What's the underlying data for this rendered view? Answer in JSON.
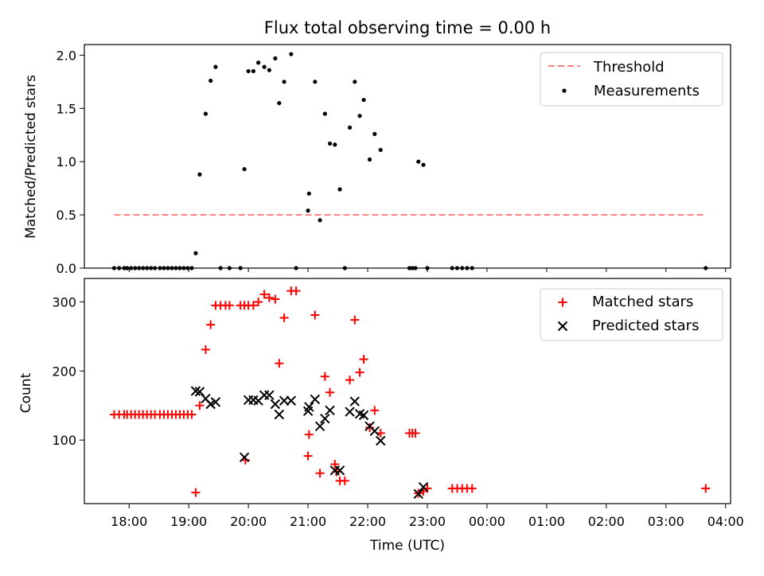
{
  "chart_data": [
    {
      "type": "scatter",
      "title": "Flux total observing time = 0.00 h",
      "ylabel": "Matched/Predicted stars",
      "ylim": [
        0,
        2.1
      ],
      "yticks": [
        0.0,
        0.5,
        1.0,
        1.5,
        2.0
      ],
      "ytick_labels": [
        "0.0",
        "0.5",
        "1.0",
        "1.5",
        "2.0"
      ],
      "xlim": [
        "17:15",
        "04:05"
      ],
      "legend_position": "top-right",
      "threshold": {
        "name": "Threshold",
        "value": 0.5,
        "x_range": [
          "17:45",
          "03:40"
        ],
        "color": "#ff8080"
      },
      "measurements": {
        "name": "Measurements",
        "color": "#000000",
        "points": [
          [
            "17:45",
            0.0
          ],
          [
            "17:50",
            0.0
          ],
          [
            "17:55",
            0.0
          ],
          [
            "17:58",
            0.0
          ],
          [
            "18:02",
            0.0
          ],
          [
            "18:06",
            0.0
          ],
          [
            "18:10",
            0.0
          ],
          [
            "18:14",
            0.0
          ],
          [
            "18:18",
            0.0
          ],
          [
            "18:22",
            0.0
          ],
          [
            "18:26",
            0.0
          ],
          [
            "18:31",
            0.0
          ],
          [
            "18:35",
            0.0
          ],
          [
            "18:39",
            0.0
          ],
          [
            "18:43",
            0.0
          ],
          [
            "18:47",
            0.0
          ],
          [
            "18:51",
            0.0
          ],
          [
            "18:55",
            0.0
          ],
          [
            "18:59",
            0.0
          ],
          [
            "19:03",
            0.0
          ],
          [
            "19:07",
            0.14
          ],
          [
            "19:11",
            0.88
          ],
          [
            "19:17",
            1.45
          ],
          [
            "19:22",
            1.76
          ],
          [
            "19:27",
            1.89
          ],
          [
            "19:32",
            0.0
          ],
          [
            "19:41",
            0.0
          ],
          [
            "19:52",
            0.0
          ],
          [
            "19:56",
            0.93
          ],
          [
            "20:00",
            1.85
          ],
          [
            "20:05",
            1.85
          ],
          [
            "20:10",
            1.93
          ],
          [
            "20:16",
            1.89
          ],
          [
            "20:21",
            1.86
          ],
          [
            "20:27",
            1.97
          ],
          [
            "20:31",
            1.55
          ],
          [
            "20:36",
            1.75
          ],
          [
            "20:43",
            2.01
          ],
          [
            "20:48",
            0.0
          ],
          [
            "21:00",
            0.54
          ],
          [
            "21:01",
            0.7
          ],
          [
            "21:07",
            1.75
          ],
          [
            "21:12",
            0.45
          ],
          [
            "21:17",
            1.45
          ],
          [
            "21:22",
            1.17
          ],
          [
            "21:27",
            1.16
          ],
          [
            "21:32",
            0.74
          ],
          [
            "21:37",
            0.0
          ],
          [
            "21:42",
            1.32
          ],
          [
            "21:47",
            1.75
          ],
          [
            "21:52",
            1.43
          ],
          [
            "21:56",
            1.58
          ],
          [
            "22:02",
            1.02
          ],
          [
            "22:07",
            1.26
          ],
          [
            "22:13",
            1.11
          ],
          [
            "22:42",
            0.0
          ],
          [
            "22:45",
            0.0
          ],
          [
            "22:48",
            0.0
          ],
          [
            "22:51",
            1.0
          ],
          [
            "22:56",
            0.97
          ],
          [
            "23:00",
            0.0
          ],
          [
            "23:25",
            0.0
          ],
          [
            "23:30",
            0.0
          ],
          [
            "23:35",
            0.0
          ],
          [
            "23:40",
            0.0
          ],
          [
            "23:45",
            0.0
          ],
          [
            "03:40",
            0.0
          ]
        ]
      }
    },
    {
      "type": "scatter",
      "xlabel": "Time (UTC)",
      "ylabel": "Count",
      "ylim": [
        8,
        334
      ],
      "yticks": [
        100,
        200,
        300
      ],
      "ytick_labels": [
        "100",
        "200",
        "300"
      ],
      "xlim": [
        "17:15",
        "04:05"
      ],
      "xticks": [
        "18:00",
        "19:00",
        "20:00",
        "21:00",
        "22:00",
        "23:00",
        "00:00",
        "01:00",
        "02:00",
        "03:00",
        "04:00"
      ],
      "legend_position": "top-right",
      "series": [
        {
          "name": "Matched stars",
          "marker": "plus",
          "color": "#ff0000",
          "points": [
            [
              "17:45",
              137
            ],
            [
              "17:50",
              137
            ],
            [
              "17:55",
              137
            ],
            [
              "17:58",
              137
            ],
            [
              "18:02",
              137
            ],
            [
              "18:06",
              137
            ],
            [
              "18:10",
              137
            ],
            [
              "18:14",
              137
            ],
            [
              "18:18",
              137
            ],
            [
              "18:22",
              137
            ],
            [
              "18:26",
              137
            ],
            [
              "18:31",
              137
            ],
            [
              "18:35",
              137
            ],
            [
              "18:39",
              137
            ],
            [
              "18:43",
              137
            ],
            [
              "18:47",
              137
            ],
            [
              "18:51",
              137
            ],
            [
              "18:55",
              137
            ],
            [
              "18:59",
              137
            ],
            [
              "19:03",
              137
            ],
            [
              "19:07",
              24
            ],
            [
              "19:11",
              150
            ],
            [
              "19:17",
              231
            ],
            [
              "19:22",
              267
            ],
            [
              "19:27",
              295
            ],
            [
              "19:32",
              295
            ],
            [
              "19:37",
              295
            ],
            [
              "19:41",
              295
            ],
            [
              "19:52",
              295
            ],
            [
              "19:56",
              295
            ],
            [
              "19:57",
              71
            ],
            [
              "20:00",
              295
            ],
            [
              "20:05",
              295
            ],
            [
              "20:10",
              300
            ],
            [
              "20:16",
              311
            ],
            [
              "20:21",
              306
            ],
            [
              "20:27",
              304
            ],
            [
              "20:31",
              211
            ],
            [
              "20:36",
              277
            ],
            [
              "20:43",
              316
            ],
            [
              "20:48",
              316
            ],
            [
              "21:00",
              77
            ],
            [
              "21:01",
              108
            ],
            [
              "21:07",
              281
            ],
            [
              "21:12",
              52
            ],
            [
              "21:17",
              192
            ],
            [
              "21:22",
              169
            ],
            [
              "21:27",
              65
            ],
            [
              "21:29",
              54
            ],
            [
              "21:32",
              41
            ],
            [
              "21:37",
              41
            ],
            [
              "21:42",
              187
            ],
            [
              "21:47",
              274
            ],
            [
              "21:52",
              198
            ],
            [
              "21:56",
              217
            ],
            [
              "22:02",
              118
            ],
            [
              "22:07",
              143
            ],
            [
              "22:13",
              110
            ],
            [
              "22:42",
              110
            ],
            [
              "22:45",
              110
            ],
            [
              "22:48",
              110
            ],
            [
              "22:51",
              23
            ],
            [
              "22:56",
              26
            ],
            [
              "23:00",
              30
            ],
            [
              "23:25",
              30
            ],
            [
              "23:30",
              30
            ],
            [
              "23:35",
              30
            ],
            [
              "23:40",
              30
            ],
            [
              "23:45",
              30
            ],
            [
              "03:40",
              30
            ]
          ]
        },
        {
          "name": "Predicted stars",
          "marker": "x",
          "color": "#000000",
          "points": [
            [
              "19:07",
              171
            ],
            [
              "19:11",
              170
            ],
            [
              "19:17",
              160
            ],
            [
              "19:22",
              152
            ],
            [
              "19:27",
              155
            ],
            [
              "19:56",
              75
            ],
            [
              "20:00",
              158
            ],
            [
              "20:05",
              158
            ],
            [
              "20:10",
              157
            ],
            [
              "20:16",
              165
            ],
            [
              "20:21",
              165
            ],
            [
              "20:27",
              152
            ],
            [
              "20:31",
              137
            ],
            [
              "20:36",
              157
            ],
            [
              "20:43",
              157
            ],
            [
              "21:00",
              142
            ],
            [
              "21:01",
              148
            ],
            [
              "21:07",
              159
            ],
            [
              "21:12",
              120
            ],
            [
              "21:17",
              131
            ],
            [
              "21:22",
              143
            ],
            [
              "21:27",
              56
            ],
            [
              "21:32",
              56
            ],
            [
              "21:42",
              141
            ],
            [
              "21:47",
              156
            ],
            [
              "21:52",
              138
            ],
            [
              "21:56",
              136
            ],
            [
              "22:02",
              120
            ],
            [
              "22:07",
              113
            ],
            [
              "22:13",
              99
            ],
            [
              "22:51",
              22
            ],
            [
              "22:56",
              32
            ]
          ]
        }
      ]
    }
  ]
}
